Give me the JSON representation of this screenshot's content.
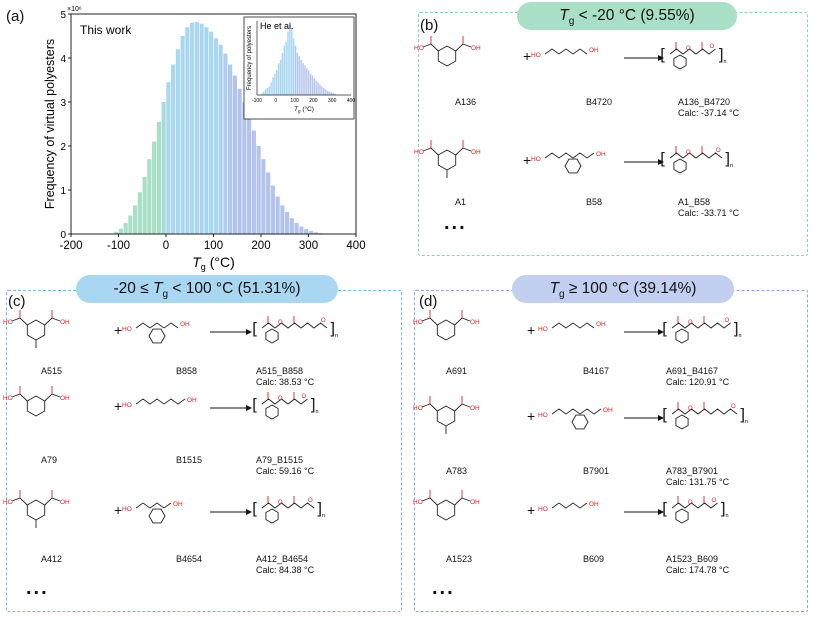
{
  "panel_a": {
    "label": "(a)",
    "ylabel": "Frequency of virtual polyesters",
    "yexp": "×10⁶",
    "xlabel_main": "T",
    "xlabel_sub": "g",
    "xlabel_unit": "(°C)",
    "legend": "This work",
    "inset": {
      "legend": "He et al.",
      "ylabel": "Frequency of polyesters",
      "xlabel_main": "T",
      "xlabel_sub": "g",
      "xlabel_unit": "(°C)"
    }
  },
  "panel_b": {
    "label": "(b)",
    "title_prefix": "T",
    "title_sub": "g",
    "title_rest": " < -20 °C (9.55%)",
    "rows": [
      {
        "acid": "A136",
        "diol": "B4720",
        "product": "A136_B4720",
        "calc": "Calc: -37.14 °C"
      },
      {
        "acid": "A1",
        "diol": "B58",
        "product": "A1_B58",
        "calc": "Calc: -33.71 °C"
      }
    ],
    "ellipsis": "..."
  },
  "panel_c": {
    "label": "(c)",
    "title_lead": "-20 ≤ ",
    "title_prefix": "T",
    "title_sub": "g",
    "title_rest": " < 100 °C (51.31%)",
    "rows": [
      {
        "acid": "A515",
        "diol": "B858",
        "product": "A515_B858",
        "calc": "Calc: 38.53 °C"
      },
      {
        "acid": "A79",
        "diol": "B1515",
        "product": "A79_B1515",
        "calc": "Calc: 59.16 °C"
      },
      {
        "acid": "A412",
        "diol": "B4654",
        "product": "A412_B4654",
        "calc": "Calc: 84.38 °C"
      }
    ],
    "ellipsis": "..."
  },
  "panel_d": {
    "label": "(d)",
    "title_prefix": "T",
    "title_sub": "g",
    "title_rest": " ≥ 100 °C (39.14%)",
    "rows": [
      {
        "acid": "A691",
        "diol": "B4167",
        "product": "A691_B4167",
        "calc": "Calc: 120.91 °C"
      },
      {
        "acid": "A783",
        "diol": "B7901",
        "product": "A783_B7901",
        "calc": "Calc: 131.75 °C"
      },
      {
        "acid": "A1523",
        "diol": "B609",
        "product": "A1523_B609",
        "calc": "Calc: 174.78 °C"
      }
    ],
    "ellipsis": "..."
  },
  "plus_sign": "+",
  "colors": {
    "green_border": "#8fd3b5",
    "green_fill": "#a8dfc6",
    "blue_border": "#7ab8e0",
    "blue_fill": "#a9d7f2",
    "purple_border": "#8ea7de",
    "purple_fill": "#c2cff0",
    "heteroatom": "#e0202a"
  },
  "chart_data": [
    {
      "type": "bar",
      "title": "",
      "legend": "This work",
      "xlabel": "Tg (°C)",
      "ylabel": "Frequency of virtual polyesters",
      "xlim": [
        -200,
        400
      ],
      "ylim": [
        0,
        5
      ],
      "y_unit_multiplier": "×10⁶",
      "xticks": [
        -200,
        -100,
        0,
        100,
        200,
        300,
        400
      ],
      "yticks": [
        0,
        1,
        2,
        3,
        4,
        5
      ],
      "bin_width": 10,
      "bins_start": [
        -110,
        -100,
        -90,
        -80,
        -70,
        -60,
        -50,
        -40,
        -30,
        -20,
        -10,
        0,
        10,
        20,
        30,
        40,
        50,
        60,
        70,
        80,
        90,
        100,
        110,
        120,
        130,
        140,
        150,
        160,
        170,
        180,
        190,
        200,
        210,
        220,
        230,
        240,
        250,
        260,
        270,
        280,
        290,
        300,
        310,
        320,
        330
      ],
      "values": [
        0.05,
        0.12,
        0.25,
        0.42,
        0.65,
        0.95,
        1.3,
        1.7,
        2.1,
        2.55,
        3.0,
        3.45,
        3.85,
        4.2,
        4.5,
        4.7,
        4.8,
        4.82,
        4.78,
        4.7,
        4.6,
        4.45,
        4.3,
        4.1,
        3.85,
        3.6,
        3.3,
        3.0,
        2.7,
        2.35,
        2.0,
        1.7,
        1.4,
        1.1,
        0.85,
        0.65,
        0.5,
        0.36,
        0.25,
        0.17,
        0.11,
        0.07,
        0.04,
        0.02,
        0.01
      ]
    },
    {
      "type": "bar",
      "title": "",
      "legend": "He et al.",
      "xlabel": "Tg (°C)",
      "ylabel": "Frequency of polyesters",
      "xlim": [
        -100,
        400
      ],
      "xticks": [
        -100,
        0,
        100,
        200,
        300,
        400
      ],
      "bin_width": 10,
      "bins_start": [
        -80,
        -70,
        -60,
        -50,
        -40,
        -30,
        -20,
        -10,
        0,
        10,
        20,
        30,
        40,
        50,
        60,
        70,
        80,
        90,
        100,
        110,
        120,
        130,
        140,
        150,
        160,
        170,
        180,
        190,
        200,
        210,
        220,
        230,
        240,
        250,
        260,
        270,
        280,
        290,
        300,
        310
      ],
      "values": [
        0.02,
        0.05,
        0.08,
        0.1,
        0.12,
        0.18,
        0.25,
        0.3,
        0.35,
        0.45,
        0.5,
        0.6,
        0.7,
        0.75,
        0.9,
        1.0,
        0.95,
        0.8,
        0.7,
        0.6,
        0.55,
        0.5,
        0.45,
        0.42,
        0.38,
        0.35,
        0.3,
        0.28,
        0.24,
        0.2,
        0.18,
        0.15,
        0.12,
        0.1,
        0.08,
        0.06,
        0.05,
        0.04,
        0.03,
        0.02
      ]
    }
  ]
}
